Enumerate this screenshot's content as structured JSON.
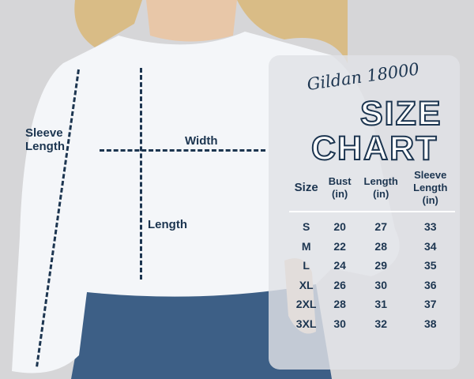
{
  "annotations": {
    "sleeve_length": "Sleeve\nLength",
    "width": "Width",
    "length": "Length"
  },
  "chart": {
    "brand": "Gildan 18000",
    "title_line1": "SIZE",
    "title_line2": "CHART",
    "headers": {
      "size": "Size",
      "bust": "Bust\n(in)",
      "length": "Length\n(in)",
      "sleeve": "Sleeve\nLength\n(in)"
    },
    "rows": [
      {
        "size": "S",
        "bust": "20",
        "length": "27",
        "sleeve": "33"
      },
      {
        "size": "M",
        "bust": "22",
        "length": "28",
        "sleeve": "34"
      },
      {
        "size": "L",
        "bust": "24",
        "length": "29",
        "sleeve": "35"
      },
      {
        "size": "XL",
        "bust": "26",
        "length": "30",
        "sleeve": "36"
      },
      {
        "size": "2XL",
        "bust": "28",
        "length": "31",
        "sleeve": "37"
      },
      {
        "size": "3XL",
        "bust": "30",
        "length": "32",
        "sleeve": "38"
      }
    ]
  },
  "colors": {
    "text": "#1c3550",
    "background": "#d6d6d8",
    "shirt": "#f4f6f9",
    "jeans": "#3d5f86"
  }
}
